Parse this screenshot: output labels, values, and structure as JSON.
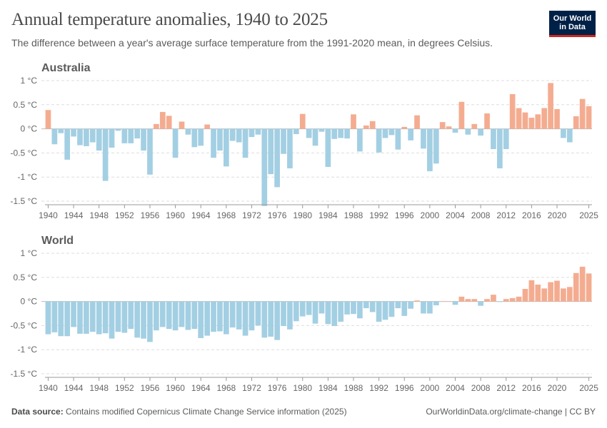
{
  "header": {
    "title": "Annual temperature anomalies, 1940 to 2025",
    "subtitle": "The difference between a year's average surface temperature from the 1991-2020 mean, in degrees Celsius.",
    "logo_line1": "Our World",
    "logo_line2": "in Data"
  },
  "footer": {
    "source_label": "Data source:",
    "source_text": "Contains modified Copernicus Climate Change Service information (2025)",
    "right_text": "OurWorldinData.org/climate-change | CC BY"
  },
  "colors": {
    "positive": "#f4ac90",
    "negative": "#a3cfe3",
    "grid": "#dddddd",
    "zero": "#bbbbbb"
  },
  "chart_data": [
    {
      "type": "bar",
      "title": "Australia",
      "unit": "°C",
      "ylim": [
        -1.5,
        1
      ],
      "yticks": [
        1,
        0.5,
        0,
        -0.5,
        -1,
        -1.5
      ],
      "ytick_labels": [
        "1 °C",
        "0.5 °C",
        "0 °C",
        "-0.5 °C",
        "-1 °C",
        "-1.5 °C"
      ],
      "x": [
        1940,
        1941,
        1942,
        1943,
        1944,
        1945,
        1946,
        1947,
        1948,
        1949,
        1950,
        1951,
        1952,
        1953,
        1954,
        1955,
        1956,
        1957,
        1958,
        1959,
        1960,
        1961,
        1962,
        1963,
        1964,
        1965,
        1966,
        1967,
        1968,
        1969,
        1970,
        1971,
        1972,
        1973,
        1974,
        1975,
        1976,
        1977,
        1978,
        1979,
        1980,
        1981,
        1982,
        1983,
        1984,
        1985,
        1986,
        1987,
        1988,
        1989,
        1990,
        1991,
        1992,
        1993,
        1994,
        1995,
        1996,
        1997,
        1998,
        1999,
        2000,
        2001,
        2002,
        2003,
        2004,
        2005,
        2006,
        2007,
        2008,
        2009,
        2010,
        2011,
        2012,
        2013,
        2014,
        2015,
        2016,
        2017,
        2018,
        2019,
        2020,
        2021,
        2022,
        2023,
        2024,
        2025
      ],
      "xtick_labels": [
        "1940",
        "1944",
        "1948",
        "1952",
        "1956",
        "1960",
        "1964",
        "1968",
        "1972",
        "1976",
        "1980",
        "1984",
        "1988",
        "1992",
        "1996",
        "2000",
        "2004",
        "2008",
        "2012",
        "2016",
        "2020",
        "2025"
      ],
      "values": [
        0.39,
        -0.32,
        -0.09,
        -0.64,
        -0.16,
        -0.34,
        -0.36,
        -0.28,
        -0.45,
        -1.08,
        -0.39,
        -0.04,
        -0.3,
        -0.3,
        -0.2,
        -0.45,
        -0.95,
        0.1,
        0.35,
        0.27,
        -0.6,
        0.15,
        -0.12,
        -0.38,
        -0.35,
        0.09,
        -0.6,
        -0.45,
        -0.78,
        -0.25,
        -0.28,
        -0.6,
        -0.17,
        -0.12,
        -1.6,
        -0.94,
        -1.21,
        -0.52,
        -0.82,
        -0.11,
        0.31,
        -0.19,
        -0.35,
        -0.06,
        -0.79,
        -0.21,
        -0.19,
        -0.2,
        0.3,
        -0.47,
        0.07,
        0.16,
        -0.49,
        -0.19,
        -0.13,
        -0.43,
        0.04,
        -0.24,
        0.28,
        -0.41,
        -0.88,
        -0.72,
        0.14,
        0.05,
        -0.08,
        0.56,
        -0.12,
        0.1,
        -0.14,
        0.32,
        -0.42,
        -0.82,
        -0.42,
        0.72,
        0.43,
        0.34,
        0.23,
        0.3,
        0.43,
        0.95,
        0.41,
        -0.19,
        -0.28,
        0.26,
        0.62,
        0.47
      ]
    },
    {
      "type": "bar",
      "title": "World",
      "unit": "°C",
      "ylim": [
        -1.5,
        1
      ],
      "yticks": [
        1,
        0.5,
        0,
        -0.5,
        -1,
        -1.5
      ],
      "ytick_labels": [
        "1 °C",
        "0.5 °C",
        "0 °C",
        "-0.5 °C",
        "-1 °C",
        "-1.5 °C"
      ],
      "x": [
        1940,
        1941,
        1942,
        1943,
        1944,
        1945,
        1946,
        1947,
        1948,
        1949,
        1950,
        1951,
        1952,
        1953,
        1954,
        1955,
        1956,
        1957,
        1958,
        1959,
        1960,
        1961,
        1962,
        1963,
        1964,
        1965,
        1966,
        1967,
        1968,
        1969,
        1970,
        1971,
        1972,
        1973,
        1974,
        1975,
        1976,
        1977,
        1978,
        1979,
        1980,
        1981,
        1982,
        1983,
        1984,
        1985,
        1986,
        1987,
        1988,
        1989,
        1990,
        1991,
        1992,
        1993,
        1994,
        1995,
        1996,
        1997,
        1998,
        1999,
        2000,
        2001,
        2002,
        2003,
        2004,
        2005,
        2006,
        2007,
        2008,
        2009,
        2010,
        2011,
        2012,
        2013,
        2014,
        2015,
        2016,
        2017,
        2018,
        2019,
        2020,
        2021,
        2022,
        2023,
        2024,
        2025
      ],
      "xtick_labels": [
        "1940",
        "1944",
        "1948",
        "1952",
        "1956",
        "1960",
        "1964",
        "1968",
        "1972",
        "1976",
        "1980",
        "1984",
        "1988",
        "1992",
        "1996",
        "2000",
        "2004",
        "2008",
        "2012",
        "2016",
        "2020",
        "2025"
      ],
      "values": [
        -0.68,
        -0.64,
        -0.72,
        -0.72,
        -0.53,
        -0.67,
        -0.67,
        -0.63,
        -0.68,
        -0.66,
        -0.77,
        -0.63,
        -0.65,
        -0.57,
        -0.75,
        -0.77,
        -0.84,
        -0.6,
        -0.53,
        -0.57,
        -0.6,
        -0.53,
        -0.59,
        -0.57,
        -0.76,
        -0.71,
        -0.63,
        -0.62,
        -0.68,
        -0.54,
        -0.58,
        -0.71,
        -0.6,
        -0.5,
        -0.75,
        -0.73,
        -0.8,
        -0.51,
        -0.58,
        -0.41,
        -0.31,
        -0.28,
        -0.46,
        -0.25,
        -0.47,
        -0.51,
        -0.42,
        -0.27,
        -0.26,
        -0.35,
        -0.14,
        -0.22,
        -0.42,
        -0.38,
        -0.32,
        -0.14,
        -0.3,
        -0.15,
        0.02,
        -0.25,
        -0.25,
        -0.08,
        0.0,
        0.0,
        -0.07,
        0.1,
        0.05,
        0.05,
        -0.09,
        0.05,
        0.14,
        -0.01,
        0.05,
        0.07,
        0.1,
        0.26,
        0.44,
        0.35,
        0.27,
        0.4,
        0.43,
        0.27,
        0.3,
        0.59,
        0.72,
        0.58
      ]
    }
  ]
}
